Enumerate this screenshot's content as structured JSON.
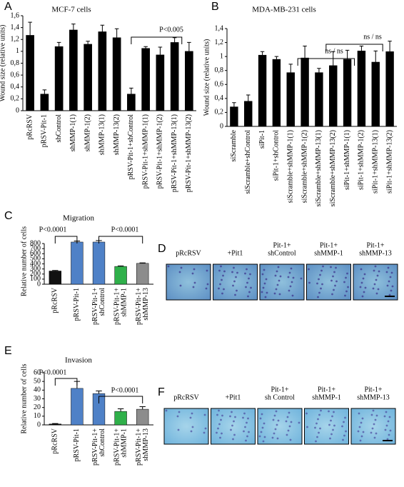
{
  "panel_letters": [
    "A",
    "B",
    "C",
    "D",
    "E",
    "F"
  ],
  "chart_data": [
    {
      "type": "bar",
      "title": "MCF-7 cells",
      "y_label": "Wound size (relative units)",
      "categories": [
        "pRcRSV",
        "pRSV-Pit-1",
        "shControl",
        "shMMP-1(1)",
        "shMMP-1(2)",
        "shMMP-13(1)",
        "shMMP-13(2)",
        "pRSV-Pit-1+shControl",
        "pRSV-Pit-1+shMMP-1(1)",
        "pRSV-Pit-1+shMMP-1(2)",
        "pRSV-Pit-1+shMMP-13(1)",
        "pRSV-Pit-1+shMMP-13(2)"
      ],
      "values": [
        1.27,
        0.28,
        1.08,
        1.36,
        1.12,
        1.33,
        1.23,
        0.28,
        1.05,
        0.94,
        1.15,
        1.0
      ],
      "errors": [
        0.22,
        0.07,
        0.07,
        0.1,
        0.05,
        0.11,
        0.15,
        0.1,
        0.03,
        0.13,
        0.08,
        0.15
      ],
      "color": "#000000",
      "ylim": [
        0,
        1.6
      ],
      "yticks": [
        0,
        {
          "value": 0.2,
          "label": "0,2"
        },
        {
          "value": 0.4,
          "label": "0,4"
        },
        {
          "value": 0.6,
          "label": "0,6"
        },
        {
          "value": 0.8,
          "label": "0,8"
        },
        1,
        {
          "value": 1.2,
          "label": "1,2"
        },
        {
          "value": 1.4,
          "label": "1,4"
        },
        {
          "value": 1.6,
          "label": "1,6"
        }
      ],
      "annotations": [
        "P<0.005"
      ]
    },
    {
      "type": "bar",
      "title": "MDA-MB-231 cells",
      "y_label": "Wound size (relative units)",
      "categories": [
        "siScramble",
        "siScramble+shControl",
        "siPit-1",
        "siPit-1+shControl",
        "siScramble+shMMP-1(1)",
        "siScramble+shMMP-1(2)",
        "siScramble+shMMP-13(1)",
        "siScramble+shMMP-13(2)",
        "siPit-1+shMMP-1(1)",
        "siPit-1+shMMP-1(2)",
        "siPit-1+shMMP-13(1)",
        "siPit-1+shMMP-13(2)"
      ],
      "values": [
        0.28,
        0.36,
        1.02,
        0.96,
        0.77,
        0.98,
        0.77,
        0.87,
        0.96,
        1.08,
        0.92,
        1.07
      ],
      "errors": [
        0.06,
        0.09,
        0.05,
        0.04,
        0.12,
        0.17,
        0.06,
        0.2,
        0.13,
        0.07,
        0.16,
        0.15
      ],
      "color": "#000000",
      "ylim": [
        0,
        1.4
      ],
      "yticks": [
        0,
        {
          "value": 0.2,
          "label": "0,2"
        },
        {
          "value": 0.4,
          "label": "0,4"
        },
        {
          "value": 0.6,
          "label": "0,6"
        },
        {
          "value": 0.8,
          "label": "0,8"
        },
        1,
        {
          "value": 1.2,
          "label": "1,2"
        },
        {
          "value": 1.4,
          "label": "1,4"
        }
      ],
      "annotations": [
        "ns / ns",
        "ns / ns"
      ]
    },
    {
      "type": "bar",
      "title": "Migration",
      "y_label": "Relative number of cells",
      "categories": [
        [
          "pRcRSV"
        ],
        [
          "pRSV-Pit-1"
        ],
        [
          "pRSV-Pit-1+",
          "shControl"
        ],
        [
          "pRSV-Pit-1+",
          "shMMP-1"
        ],
        [
          "pRSV-Pit-1+",
          "shMMP-13"
        ]
      ],
      "values": [
        260,
        830,
        830,
        350,
        410
      ],
      "errors": [
        10,
        20,
        30,
        10,
        10
      ],
      "colors": [
        "#111111",
        "#4f81c7",
        "#4f81c7",
        "#2fb04a",
        "#8c8c8c"
      ],
      "ylim": [
        0,
        900
      ],
      "yticks": [
        0,
        100,
        200,
        300,
        400,
        500,
        600,
        700,
        800
      ],
      "annotations": [
        "P<0.0001",
        "P<0.0001"
      ]
    },
    {
      "type": "bar",
      "title": "Invasion",
      "y_label": "Relative number of cells",
      "categories": [
        [
          "pRcRSV"
        ],
        [
          "pRSV-Pit-1"
        ],
        [
          "pRSV-Pit-1+",
          "shControl"
        ],
        [
          "pRSV-Pit-1+",
          "shMMP-1"
        ],
        [
          "pRSV-Pit-1+",
          "shMMP-13"
        ]
      ],
      "values": [
        1,
        42,
        36,
        15.5,
        18
      ],
      "errors": [
        0.5,
        8,
        3,
        3,
        3
      ],
      "colors": [
        "#111111",
        "#4f81c7",
        "#4f81c7",
        "#2fb04a",
        "#8c8c8c"
      ],
      "ylim": [
        0,
        60
      ],
      "yticks": [
        0,
        10,
        20,
        30,
        40,
        50,
        60
      ],
      "annotations": [
        "P<0.0001",
        "P<0.0001"
      ]
    }
  ],
  "panel_d": {
    "labels": [
      [
        "pRcRSV"
      ],
      [
        "+Pit1"
      ],
      [
        "Pit-1+",
        "shControl"
      ],
      [
        "Pit-1+",
        "shMMP-1"
      ],
      [
        "Pit-1+",
        "shMMP-13"
      ]
    ]
  },
  "panel_f": {
    "labels": [
      [
        "pRcRSV"
      ],
      [
        "+Pit1"
      ],
      [
        "Pit-1+",
        "sh Control"
      ],
      [
        "Pit-1+",
        "shMMP-1"
      ],
      [
        "Pit-1+",
        "shMMP-13"
      ]
    ]
  }
}
